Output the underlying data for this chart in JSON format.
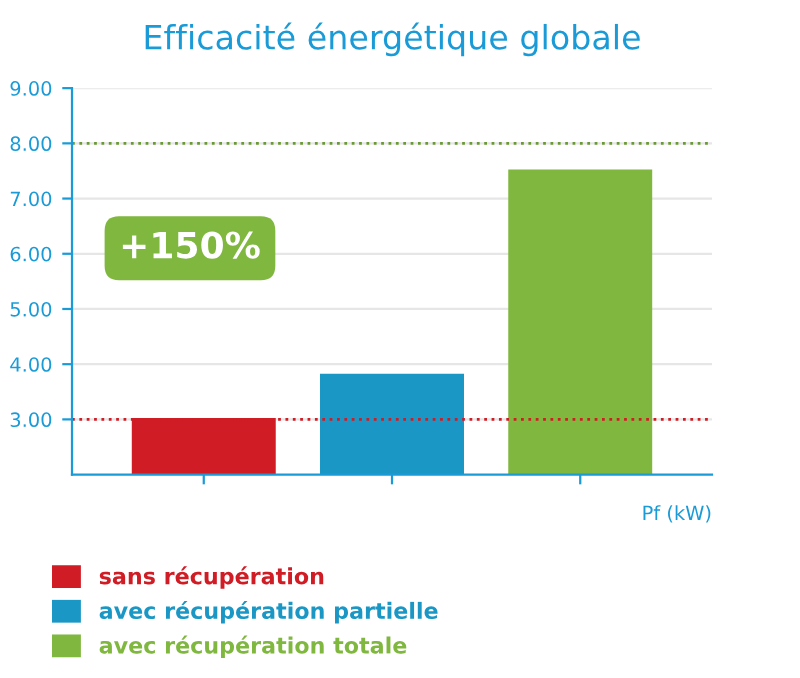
{
  "chart_data": {
    "type": "bar",
    "title": "Efficacité énergétique globale",
    "xlabel": "Pf (kW)",
    "categories": [
      null,
      null,
      null
    ],
    "series": [
      {
        "name": "sans récupération",
        "color": "#d01c24",
        "values": [
          3.0,
          null,
          null
        ]
      },
      {
        "name": "avec récupération partielle",
        "color": "#1a97c4",
        "values": [
          null,
          3.8,
          null
        ]
      },
      {
        "name": "avec récupération totale",
        "color": "#7fb73f",
        "values": [
          null,
          null,
          7.5
        ]
      }
    ],
    "ylim": [
      2.0,
      9.0
    ],
    "yticks": [
      {
        "value": 3,
        "label": "3.00"
      },
      {
        "value": 4,
        "label": "4.00"
      },
      {
        "value": 5,
        "label": "5.00"
      },
      {
        "value": 6,
        "label": "6.00"
      },
      {
        "value": 7,
        "label": "7.00"
      },
      {
        "value": 8,
        "label": "8.00"
      },
      {
        "value": 9,
        "label": "9.00"
      }
    ],
    "grid": "y",
    "ref_lines": [
      {
        "axis": "y",
        "value": 3.0,
        "color": "#d01c24",
        "line_style": "dotted"
      },
      {
        "axis": "y",
        "value": 8.0,
        "color": "#6a9a35",
        "line_style": "dotted"
      }
    ],
    "annotations": [
      "+150%"
    ],
    "legend": "bottom"
  }
}
